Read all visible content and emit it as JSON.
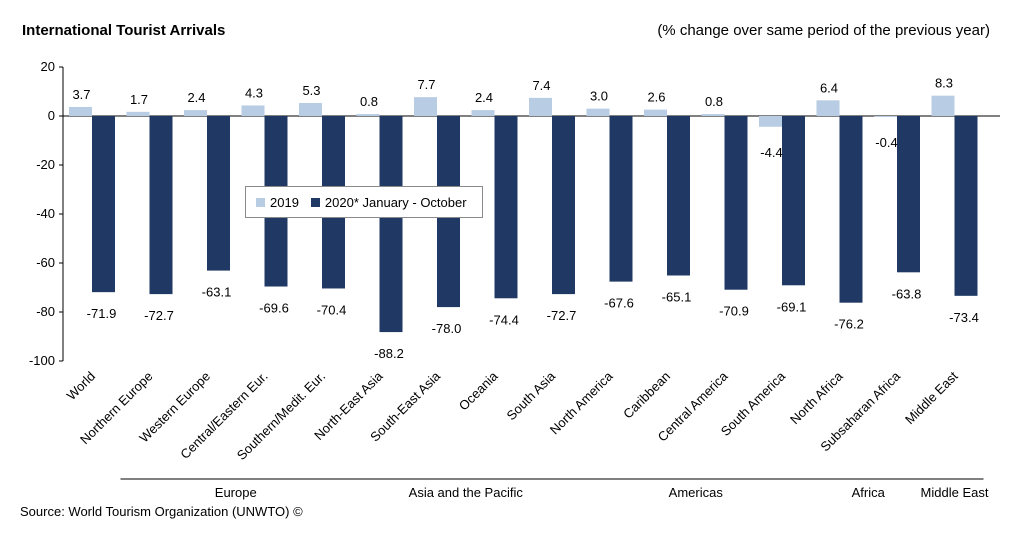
{
  "title": "International Tourist Arrivals",
  "subtitle": "(% change over same period of the previous year)",
  "source": "Source: World Tourism Organization (UNWTO) ©",
  "colors": {
    "s2019": "#b8cce4",
    "s2020": "#1f3864"
  },
  "legend": {
    "s2019": "2019",
    "s2020": "2020* January - October"
  },
  "chart_data": {
    "type": "bar",
    "title": "International Tourist Arrivals",
    "subtitle": "(% change over same period of the previous year)",
    "ylim": [
      -100,
      20
    ],
    "yticks": [
      "20",
      "0",
      "-20",
      "-40",
      "-60",
      "-80",
      "-100"
    ],
    "grid": false,
    "legend_position": "center-left",
    "categories": [
      "World",
      "Northern Europe",
      "Western Europe",
      "Central/Eastern Eur.",
      "Southern/Medit. Eur.",
      "North-East Asia",
      "South-East Asia",
      "Oceania",
      "South Asia",
      "North America",
      "Caribbean",
      "Central America",
      "South America",
      "North Africa",
      "Subsaharan Africa",
      "Middle East"
    ],
    "series": [
      {
        "name": "2019",
        "values": [
          3.7,
          1.7,
          2.4,
          4.3,
          5.3,
          0.8,
          7.7,
          2.4,
          7.4,
          3.0,
          2.6,
          0.8,
          -4.4,
          6.4,
          -0.4,
          8.3
        ],
        "labels": [
          "3.7",
          "1.7",
          "2.4",
          "4.3",
          "5.3",
          "0.8",
          "7.7",
          "2.4",
          "7.4",
          "3.0",
          "2.6",
          "0.8",
          "-4.4",
          "6.4",
          "-0.4",
          "8.3"
        ]
      },
      {
        "name": "2020* January - October",
        "values": [
          -71.9,
          -72.7,
          -63.1,
          -69.6,
          -70.4,
          -88.2,
          -78.0,
          -74.4,
          -72.7,
          -67.6,
          -65.1,
          -70.9,
          -69.1,
          -76.2,
          -63.8,
          -73.4
        ],
        "labels": [
          "-71.9",
          "-72.7",
          "-63.1",
          "-69.6",
          "-70.4",
          "-88.2",
          "-78.0",
          "-74.4",
          "-72.7",
          "-67.6",
          "-65.1",
          "-70.9",
          "-69.1",
          "-76.2",
          "-63.8",
          "-73.4"
        ]
      }
    ],
    "groups": [
      {
        "label": "Europe",
        "from": 1,
        "to": 4
      },
      {
        "label": "Asia and the Pacific",
        "from": 5,
        "to": 8
      },
      {
        "label": "Americas",
        "from": 9,
        "to": 12
      },
      {
        "label": "Africa",
        "from": 13,
        "to": 14
      },
      {
        "label": "Middle East",
        "from": 15,
        "to": 15
      }
    ]
  }
}
